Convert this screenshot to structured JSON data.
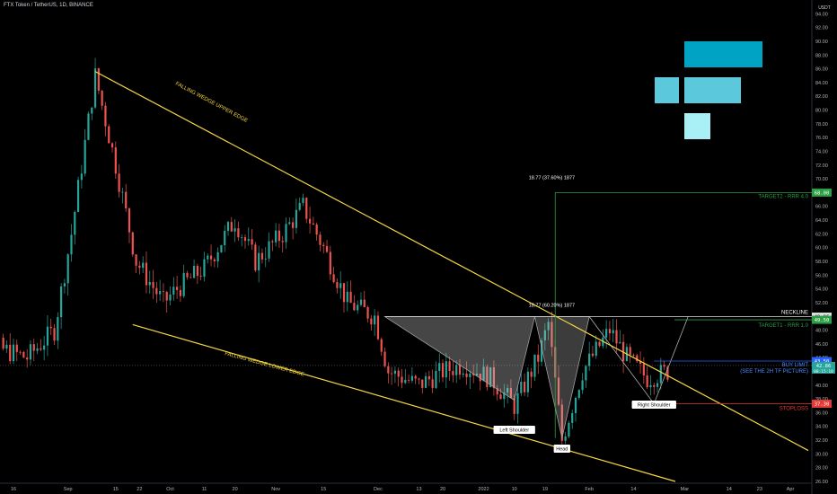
{
  "header": {
    "symbol": "FTX Token / TetherUS, 1D, BINANCE"
  },
  "currency": "USDT",
  "colors": {
    "up": "#26a69a",
    "down": "#ef5350",
    "wedge": "#f5d742",
    "target": "#2e9e45",
    "stop": "#e53935",
    "buy": "#2962ff",
    "text_blue": "#4a8cff",
    "logo_dark": "#00a3c4",
    "logo_mid": "#5bc8dc",
    "logo_light": "#a8eff6"
  },
  "chart_data": {
    "type": "candlestick",
    "ylim": [
      26,
      96
    ],
    "y_ticks": [
      26,
      28,
      30,
      32,
      34,
      36,
      38,
      40,
      42,
      44,
      46,
      48,
      50,
      52,
      54,
      56,
      58,
      60,
      62,
      64,
      66,
      68,
      70,
      72,
      74,
      76,
      78,
      80,
      82,
      84,
      86,
      88,
      90,
      92,
      94,
      96
    ],
    "x_ticks": [
      "16",
      "Sep",
      "15",
      "22",
      "Oct",
      "11",
      "20",
      "Nov",
      "15",
      "Dec",
      "13",
      "20",
      "2022",
      "10",
      "19",
      "Feb",
      "14",
      "Mar",
      "14",
      "23",
      "Apr"
    ],
    "price_path": [
      {
        "date": "Aug 8",
        "price": 46
      },
      {
        "date": "Aug 20",
        "price": 44
      },
      {
        "date": "Aug 28",
        "price": 48
      },
      {
        "date": "Sep 2",
        "price": 62
      },
      {
        "date": "Sep 9",
        "price": 85
      },
      {
        "date": "Sep 15",
        "price": 72
      },
      {
        "date": "Sep 21",
        "price": 58
      },
      {
        "date": "Sep 29",
        "price": 52
      },
      {
        "date": "Oct 3",
        "price": 54
      },
      {
        "date": "Oct 11",
        "price": 57
      },
      {
        "date": "Oct 20",
        "price": 64
      },
      {
        "date": "Oct 26",
        "price": 58
      },
      {
        "date": "Nov 3",
        "price": 62
      },
      {
        "date": "Nov 9",
        "price": 66
      },
      {
        "date": "Nov 15",
        "price": 60
      },
      {
        "date": "Nov 22",
        "price": 52
      },
      {
        "date": "Nov 30",
        "price": 50
      },
      {
        "date": "Dec 4",
        "price": 42
      },
      {
        "date": "Dec 13",
        "price": 40
      },
      {
        "date": "Dec 20",
        "price": 42
      },
      {
        "date": "Dec 26",
        "price": 43
      },
      {
        "date": "Jan 3",
        "price": 41
      },
      {
        "date": "Jan 10",
        "price": 37
      },
      {
        "date": "Jan 17",
        "price": 44
      },
      {
        "date": "Jan 20",
        "price": 49
      },
      {
        "date": "Jan 24",
        "price": 32
      },
      {
        "date": "Jan 30",
        "price": 42
      },
      {
        "date": "Feb 7",
        "price": 48
      },
      {
        "date": "Feb 12",
        "price": 44
      },
      {
        "date": "Feb 18",
        "price": 41
      },
      {
        "date": "Feb 24",
        "price": 42
      }
    ],
    "annotations": {
      "upper_edge_label": "FALLING WEDGE UPPER EDGE",
      "lower_edge_label": "FALLING WEDGE LOWER EDGE",
      "left_shoulder": "Left Shoulder",
      "head": "Head",
      "right_shoulder": "Right Shoulder",
      "neckline": "NECKLINE",
      "target1": "TARGET1 - RRR 1.0",
      "target2": "TARGET2 - RRR 4.0",
      "buy_limit": "BUY LIMIT",
      "buy_note": "(SEE THE 2H TF PICTURE)",
      "stoploss": "STOPLOSS",
      "measure1": "18.77 (37.60%) 1877",
      "measure2": "18.77 (60.20%) 1877"
    },
    "levels": {
      "target2": {
        "value": 68.0,
        "label": "68.00"
      },
      "neckline": {
        "value": 49.96,
        "label": "49.96"
      },
      "target1": {
        "value": 49.5,
        "label": "49.50"
      },
      "buy": {
        "value": 43.5,
        "label": "43.50"
      },
      "current": {
        "value": 42.86,
        "label": "42.86",
        "countdown": "08:15:10"
      },
      "stoploss": {
        "value": 37.3,
        "label": "37.30"
      }
    }
  }
}
